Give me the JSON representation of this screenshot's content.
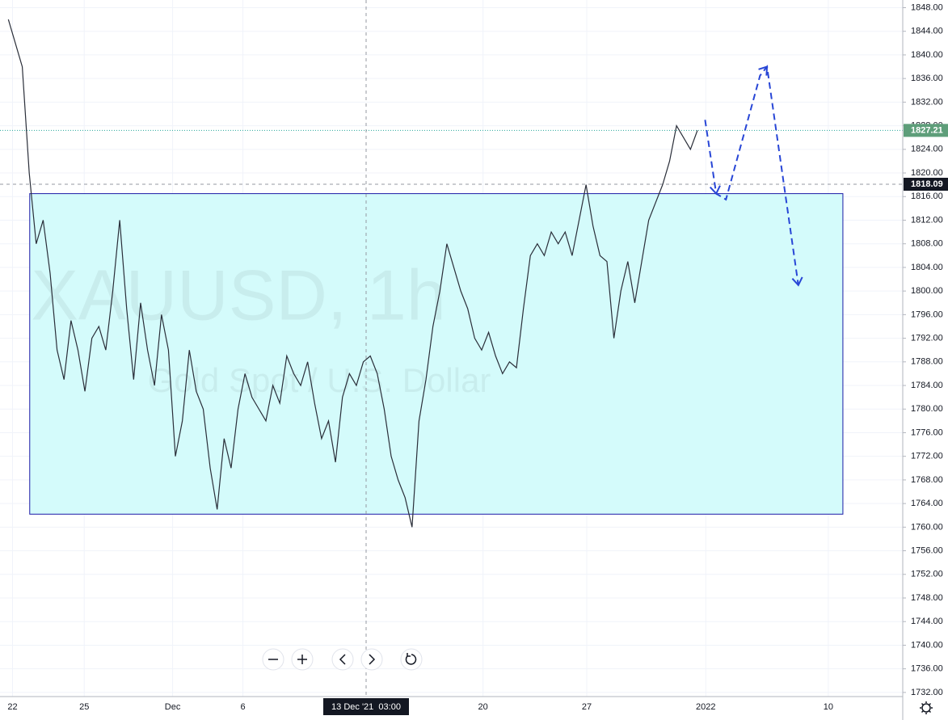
{
  "chart_data": {
    "type": "line",
    "title": "XAUUSD, 1h",
    "subtitle": "Gold Spot / U.S. Dollar",
    "color": "#2a2e39",
    "values": [
      1846,
      1842,
      1838,
      1820,
      1808,
      1812,
      1803,
      1790,
      1785,
      1795,
      1790,
      1783,
      1792,
      1794,
      1790,
      1800,
      1812,
      1797,
      1785,
      1798,
      1790,
      1784,
      1796,
      1790,
      1772,
      1778,
      1790,
      1783,
      1780,
      1770,
      1763,
      1775,
      1770,
      1780,
      1786,
      1782,
      1780,
      1778,
      1784,
      1781,
      1789,
      1786,
      1784,
      1788,
      1781,
      1775,
      1778,
      1771,
      1782,
      1786,
      1784,
      1788,
      1789,
      1786,
      1780,
      1772,
      1768,
      1765,
      1760,
      1778,
      1785,
      1794,
      1800,
      1808,
      1804,
      1800,
      1797,
      1792,
      1790,
      1793,
      1789,
      1786,
      1788,
      1787,
      1797,
      1806,
      1808,
      1806,
      1810,
      1808,
      1810,
      1806,
      1812,
      1818,
      1811,
      1806,
      1805,
      1792,
      1800,
      1805,
      1798,
      1805,
      1812,
      1815,
      1818,
      1822,
      1828,
      1826,
      1824,
      1827.21
    ],
    "xlim": [
      -1.2,
      128.5
    ],
    "xticks": [
      {
        "value": 0.6,
        "label": "22"
      },
      {
        "value": 10.9,
        "label": "25"
      },
      {
        "value": 23.6,
        "label": "Dec"
      },
      {
        "value": 33.7,
        "label": "6"
      },
      {
        "value": 68.2,
        "label": "20"
      },
      {
        "value": 83.1,
        "label": "27"
      },
      {
        "value": 100.2,
        "label": "2022"
      },
      {
        "value": 117.8,
        "label": "10"
      }
    ],
    "crosshair": {
      "x": {
        "value": 51.4,
        "label": "13 Dec '21  03:00"
      },
      "y": 1818.09
    },
    "last_price": 1827.21,
    "ylim": [
      1731.3,
      1849.3
    ],
    "yticks": [
      {
        "value": 1732,
        "label": "1732.00"
      },
      {
        "value": 1736,
        "label": "1736.00"
      },
      {
        "value": 1740,
        "label": "1740.00"
      },
      {
        "value": 1744,
        "label": "1744.00"
      },
      {
        "value": 1748,
        "label": "1748.00"
      },
      {
        "value": 1752,
        "label": "1752.00"
      },
      {
        "value": 1756,
        "label": "1756.00"
      },
      {
        "value": 1760,
        "label": "1760.00"
      },
      {
        "value": 1764,
        "label": "1764.00"
      },
      {
        "value": 1768,
        "label": "1768.00"
      },
      {
        "value": 1772,
        "label": "1772.00"
      },
      {
        "value": 1776,
        "label": "1776.00"
      },
      {
        "value": 1780,
        "label": "1780.00"
      },
      {
        "value": 1784,
        "label": "1784.00"
      },
      {
        "value": 1788,
        "label": "1788.00"
      },
      {
        "value": 1792,
        "label": "1792.00"
      },
      {
        "value": 1796,
        "label": "1796.00"
      },
      {
        "value": 1800,
        "label": "1800.00"
      },
      {
        "value": 1804,
        "label": "1804.00"
      },
      {
        "value": 1808,
        "label": "1808.00"
      },
      {
        "value": 1812,
        "label": "1812.00"
      },
      {
        "value": 1816,
        "label": "1816.00"
      },
      {
        "value": 1820,
        "label": "1820.00"
      },
      {
        "value": 1824,
        "label": "1824.00"
      },
      {
        "value": 1828,
        "label": "1828.00"
      },
      {
        "value": 1832,
        "label": "1832.00"
      },
      {
        "value": 1836,
        "label": "1836.00"
      },
      {
        "value": 1840,
        "label": "1840.00"
      },
      {
        "value": 1844,
        "label": "1844.00"
      },
      {
        "value": 1848,
        "label": "1848.00"
      }
    ],
    "grid": true,
    "range_box": {
      "x": [
        3.07,
        119.9
      ],
      "y": [
        1762.2,
        1816.5
      ],
      "fill": "#d4fbfb",
      "stroke": "#1a1aa6"
    },
    "projection": {
      "color": "#2846d6",
      "x": [
        100.1,
        101.7,
        103.1,
        108,
        109,
        113.5
      ],
      "y": [
        1829,
        1816.5,
        1815.5,
        1836.5,
        1838,
        1801
      ]
    }
  }
}
